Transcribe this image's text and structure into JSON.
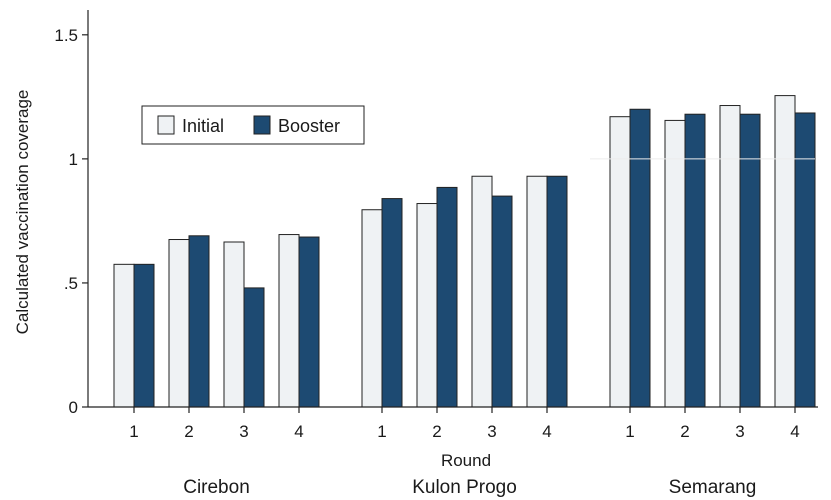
{
  "chart_data": {
    "type": "bar",
    "ylabel": "Calculated vaccination coverage",
    "xlabel": "Round",
    "ylim": [
      0,
      1.6
    ],
    "yticks": [
      {
        "value": 0,
        "label": "0"
      },
      {
        "value": 0.5,
        "label": ".5"
      },
      {
        "value": 1,
        "label": "1"
      },
      {
        "value": 1.5,
        "label": "1.5"
      }
    ],
    "grid": false,
    "legend_position": "top-left",
    "series": [
      {
        "name": "Initial",
        "color": "#eff2f4"
      },
      {
        "name": "Booster",
        "color": "#1d4a72"
      }
    ],
    "groups": [
      {
        "name": "Cirebon",
        "rounds": [
          "1",
          "2",
          "3",
          "4"
        ],
        "initial": [
          0.575,
          0.675,
          0.665,
          0.695
        ],
        "booster": [
          0.575,
          0.69,
          0.48,
          0.685
        ]
      },
      {
        "name": "Kulon Progo",
        "rounds": [
          "1",
          "2",
          "3",
          "4"
        ],
        "initial": [
          0.795,
          0.82,
          0.93,
          0.93
        ],
        "booster": [
          0.84,
          0.885,
          0.85,
          0.93
        ]
      },
      {
        "name": "Semarang",
        "rounds": [
          "1",
          "2",
          "3",
          "4"
        ],
        "initial": [
          1.17,
          1.155,
          1.215,
          1.255
        ],
        "booster": [
          1.2,
          1.18,
          1.18,
          1.185
        ]
      }
    ]
  }
}
